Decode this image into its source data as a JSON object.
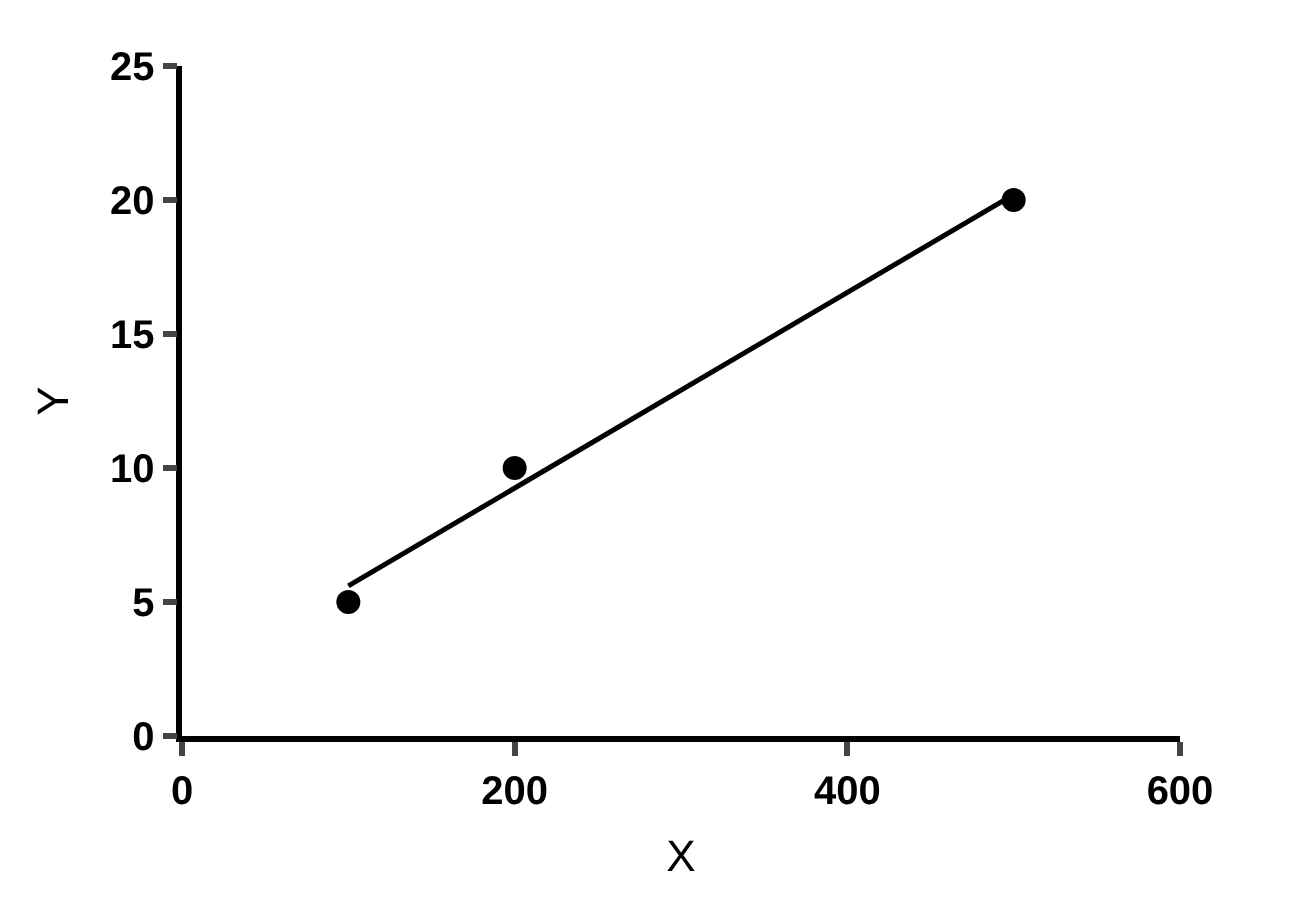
{
  "chart_data": {
    "type": "scatter",
    "xlabel": "X",
    "ylabel": "Y",
    "x": [
      100,
      200,
      500
    ],
    "series": [
      {
        "color": "#000000",
        "values": [
          5,
          10,
          20
        ],
        "marker": "circle"
      },
      {
        "type": "line",
        "color": "#000000",
        "x": [
          100,
          500
        ],
        "values": [
          5.6,
          20.2
        ],
        "line_style": "solid"
      }
    ],
    "xlim": [
      0,
      600
    ],
    "xticks": [
      0,
      200,
      400,
      600
    ],
    "ylim": [
      0,
      25
    ],
    "yticks": [
      0,
      5,
      10,
      15,
      20,
      25
    ],
    "grid": false
  }
}
